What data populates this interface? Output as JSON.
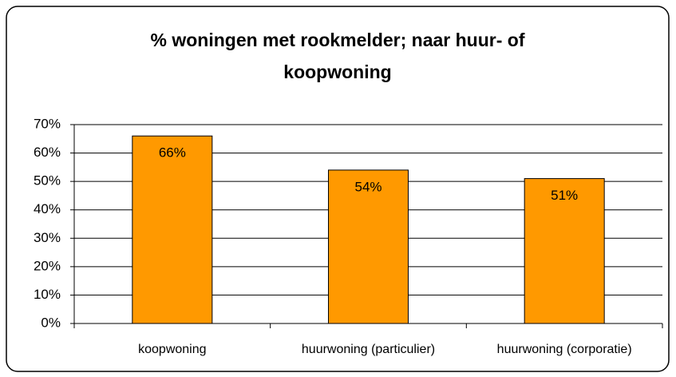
{
  "chart_data": {
    "type": "bar",
    "title": "% woningen met rookmelder; naar huur- of koopwoning",
    "categories": [
      "koopwoning",
      "huurwoning (particulier)",
      "huurwoning (corporatie)"
    ],
    "values": [
      66,
      54,
      51
    ],
    "value_labels": [
      "66%",
      "54%",
      "51%"
    ],
    "color": "#ff9900",
    "ylim": [
      0,
      70
    ],
    "yticks": [
      {
        "value": 0,
        "label": "0%"
      },
      {
        "value": 10,
        "label": "10%"
      },
      {
        "value": 20,
        "label": "20%"
      },
      {
        "value": 30,
        "label": "30%"
      },
      {
        "value": 40,
        "label": "40%"
      },
      {
        "value": 50,
        "label": "50%"
      },
      {
        "value": 60,
        "label": "60%"
      },
      {
        "value": 70,
        "label": "70%"
      }
    ],
    "grid": true
  }
}
